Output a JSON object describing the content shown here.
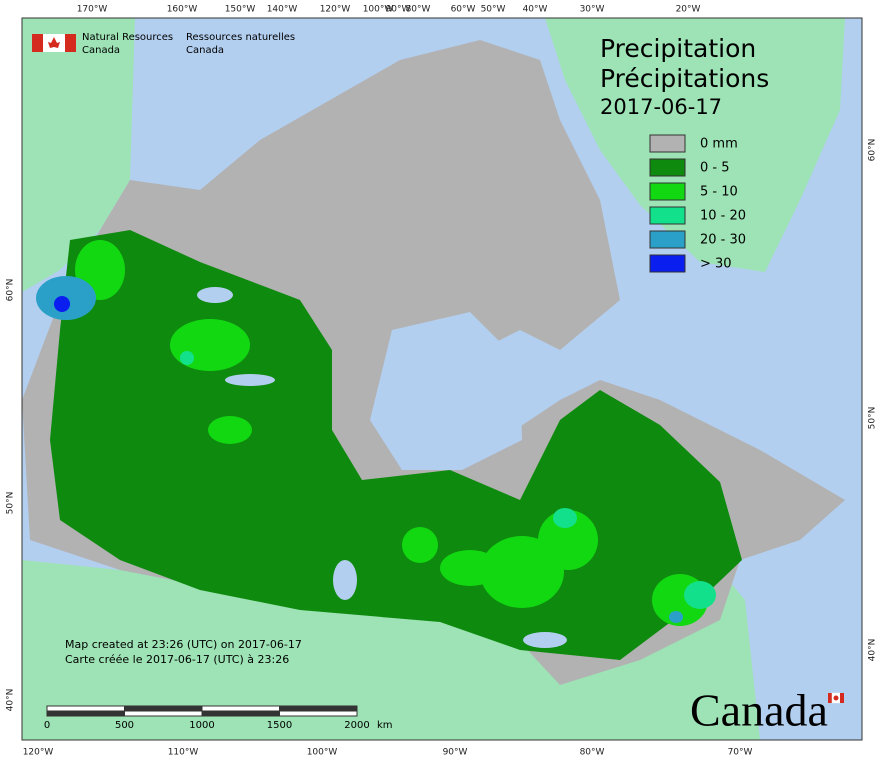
{
  "header": {
    "agency_en": [
      "Natural Resources",
      "Canada"
    ],
    "agency_fr": [
      "Ressources naturelles",
      "Canada"
    ]
  },
  "title": [
    "Precipitation",
    "Précipitations",
    "2017-06-17"
  ],
  "legend": [
    {
      "label": "0 mm",
      "color": "#b2b2b2"
    },
    {
      "label": "0 - 5",
      "color": "#0e8a0e"
    },
    {
      "label": "5 - 10",
      "color": "#12d812"
    },
    {
      "label": "10 - 20",
      "color": "#12e08a"
    },
    {
      "label": "20 - 30",
      "color": "#2aa0c8"
    },
    {
      "label": "> 30",
      "color": "#0a1ef0"
    }
  ],
  "notes": [
    "Map created at 23:26 (UTC) on 2017-06-17",
    "Carte créée le 2017-06-17 (UTC) à 23:26"
  ],
  "scale_bar": {
    "ticks": [
      0,
      500,
      1000,
      1500,
      2000
    ],
    "unit": "km"
  },
  "graticule": {
    "top": [
      "170°W",
      "160°W",
      "150°W",
      "140°W",
      "120°W",
      "100°W",
      "90°W",
      "80°W",
      "60°W",
      "50°W",
      "40°W",
      "30°W",
      "20°W"
    ],
    "bottom": [
      "120°W",
      "110°W",
      "100°W",
      "90°W",
      "80°W",
      "70°W"
    ],
    "left": [
      "60°N",
      "50°N",
      "40°N"
    ],
    "right": [
      "60°N",
      "50°N",
      "40°N"
    ]
  },
  "wordmark": "Canada"
}
